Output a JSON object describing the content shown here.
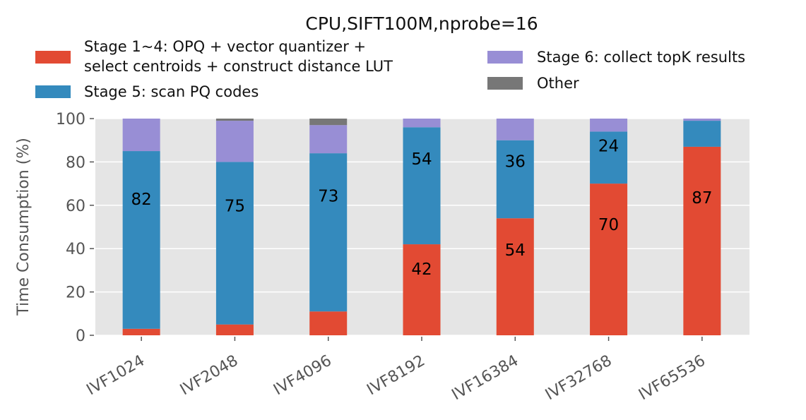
{
  "chart_data": {
    "type": "bar",
    "stacked": true,
    "title": "CPU,SIFT100M,nprobe=16",
    "xlabel": "",
    "ylabel": "Time Consumption (%)",
    "ylim": [
      0,
      100
    ],
    "yticks": [
      "0",
      "20",
      "40",
      "60",
      "80",
      "100"
    ],
    "grid": true,
    "legend_position": "top",
    "categories": [
      "IVF1024",
      "IVF2048",
      "IVF4096",
      "IVF8192",
      "IVF16384",
      "IVF32768",
      "IVF65536"
    ],
    "series": [
      {
        "name": "Stage 1~4: OPQ + vector quantizer + select centroids + construct distance LUT",
        "legend_lines": [
          "Stage 1~4: OPQ + vector quantizer +",
          "select centroids + construct distance LUT"
        ],
        "color": "#E24A33",
        "values": [
          3,
          5,
          11,
          42,
          54,
          70,
          87
        ],
        "labels": [
          "",
          "",
          "",
          "42",
          "54",
          "70",
          "87"
        ]
      },
      {
        "name": "Stage 5: scan PQ codes",
        "color": "#348ABD",
        "values": [
          82,
          75,
          73,
          54,
          36,
          24,
          12
        ],
        "labels": [
          "82",
          "75",
          "73",
          "54",
          "36",
          "24",
          ""
        ]
      },
      {
        "name": "Stage 6: collect topK results",
        "color": "#988ED5",
        "values": [
          15,
          19,
          13,
          4,
          10,
          6,
          1
        ],
        "labels": [
          "",
          "",
          "",
          "",
          "",
          "",
          ""
        ]
      },
      {
        "name": "Other",
        "color": "#777777",
        "values": [
          0,
          1,
          3,
          0,
          0,
          0,
          0
        ],
        "labels": [
          "",
          "",
          "",
          "",
          "",
          "",
          ""
        ]
      }
    ]
  }
}
